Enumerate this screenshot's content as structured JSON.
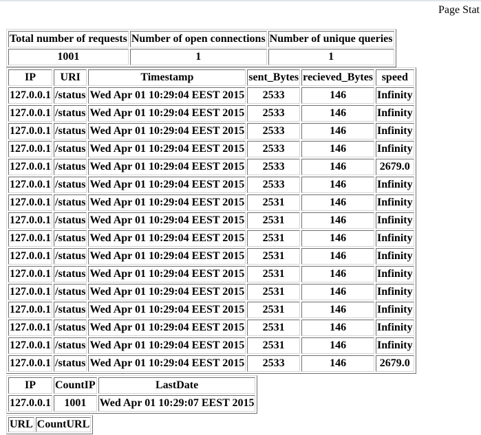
{
  "page_title": "Page Stat",
  "summary": {
    "headers": [
      "Total number of requests",
      "Number of open connections",
      "Number of unique queries"
    ],
    "values": [
      "1001",
      "1",
      "1"
    ]
  },
  "requests": {
    "headers": [
      "IP",
      "URI",
      "Timestamp",
      "sent_Bytes",
      "recieved_Bytes",
      "speed"
    ],
    "rows": [
      [
        "127.0.0.1",
        "/status",
        "Wed Apr 01 10:29:04 EEST 2015",
        "2533",
        "146",
        "Infinity"
      ],
      [
        "127.0.0.1",
        "/status",
        "Wed Apr 01 10:29:04 EEST 2015",
        "2533",
        "146",
        "Infinity"
      ],
      [
        "127.0.0.1",
        "/status",
        "Wed Apr 01 10:29:04 EEST 2015",
        "2533",
        "146",
        "Infinity"
      ],
      [
        "127.0.0.1",
        "/status",
        "Wed Apr 01 10:29:04 EEST 2015",
        "2533",
        "146",
        "Infinity"
      ],
      [
        "127.0.0.1",
        "/status",
        "Wed Apr 01 10:29:04 EEST 2015",
        "2533",
        "146",
        "2679.0"
      ],
      [
        "127.0.0.1",
        "/status",
        "Wed Apr 01 10:29:04 EEST 2015",
        "2533",
        "146",
        "Infinity"
      ],
      [
        "127.0.0.1",
        "/status",
        "Wed Apr 01 10:29:04 EEST 2015",
        "2531",
        "146",
        "Infinity"
      ],
      [
        "127.0.0.1",
        "/status",
        "Wed Apr 01 10:29:04 EEST 2015",
        "2531",
        "146",
        "Infinity"
      ],
      [
        "127.0.0.1",
        "/status",
        "Wed Apr 01 10:29:04 EEST 2015",
        "2531",
        "146",
        "Infinity"
      ],
      [
        "127.0.0.1",
        "/status",
        "Wed Apr 01 10:29:04 EEST 2015",
        "2531",
        "146",
        "Infinity"
      ],
      [
        "127.0.0.1",
        "/status",
        "Wed Apr 01 10:29:04 EEST 2015",
        "2531",
        "146",
        "Infinity"
      ],
      [
        "127.0.0.1",
        "/status",
        "Wed Apr 01 10:29:04 EEST 2015",
        "2531",
        "146",
        "Infinity"
      ],
      [
        "127.0.0.1",
        "/status",
        "Wed Apr 01 10:29:04 EEST 2015",
        "2531",
        "146",
        "Infinity"
      ],
      [
        "127.0.0.1",
        "/status",
        "Wed Apr 01 10:29:04 EEST 2015",
        "2531",
        "146",
        "Infinity"
      ],
      [
        "127.0.0.1",
        "/status",
        "Wed Apr 01 10:29:04 EEST 2015",
        "2531",
        "146",
        "Infinity"
      ],
      [
        "127.0.0.1",
        "/status",
        "Wed Apr 01 10:29:04 EEST 2015",
        "2533",
        "146",
        "2679.0"
      ]
    ]
  },
  "ip_counts": {
    "headers": [
      "IP",
      "CountIP",
      "LastDate"
    ],
    "rows": [
      [
        "127.0.0.1",
        "1001",
        "Wed Apr 01 10:29:07 EEST 2015"
      ]
    ]
  },
  "url_counts": {
    "headers": [
      "URL",
      "CountURL"
    ]
  }
}
